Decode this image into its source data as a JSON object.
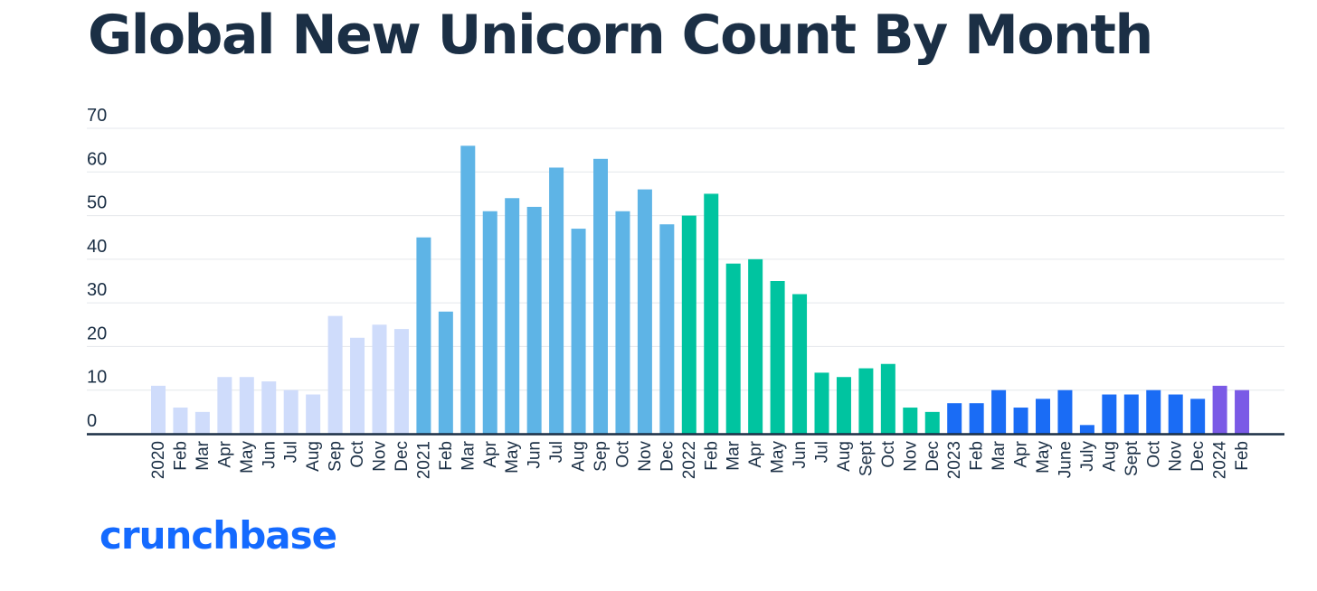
{
  "title": "Global New Unicorn Count By Month",
  "logo_text": "crunchbase",
  "chart_data": {
    "type": "bar",
    "title": "Global New Unicorn Count By Month",
    "xlabel": "",
    "ylabel": "",
    "ylim": [
      0,
      70
    ],
    "yticks": [
      0,
      10,
      20,
      30,
      40,
      50,
      60,
      70
    ],
    "grid": true,
    "categories": [
      "2020",
      "Feb",
      "Mar",
      "Apr",
      "May",
      "Jun",
      "Jul",
      "Aug",
      "Sep",
      "Oct",
      "Nov",
      "Dec",
      "2021",
      "Feb",
      "Mar",
      "Apr",
      "May",
      "Jun",
      "Jul",
      "Aug",
      "Sep",
      "Oct",
      "Nov",
      "Dec",
      "2022",
      "Feb",
      "Mar",
      "Apr",
      "May",
      "Jun",
      "Jul",
      "Aug",
      "Sept",
      "Oct",
      "Nov",
      "Dec",
      "2023",
      "Feb",
      "Mar",
      "Apr",
      "May",
      "June",
      "July",
      "Aug",
      "Sept",
      "Oct",
      "Nov",
      "Dec",
      "2024",
      "Feb"
    ],
    "values": [
      11,
      6,
      5,
      13,
      13,
      12,
      10,
      9,
      27,
      22,
      25,
      24,
      45,
      28,
      66,
      51,
      54,
      52,
      61,
      47,
      63,
      51,
      56,
      48,
      50,
      55,
      39,
      40,
      35,
      32,
      14,
      13,
      15,
      16,
      6,
      5,
      7,
      7,
      10,
      6,
      8,
      10,
      2,
      9,
      9,
      10,
      9,
      8,
      11,
      10
    ],
    "year_groups": [
      {
        "year": "2020",
        "start": 0,
        "end": 11,
        "color": "#cfdcfb"
      },
      {
        "year": "2021",
        "start": 12,
        "end": 23,
        "color": "#5eb4e6"
      },
      {
        "year": "2022",
        "start": 24,
        "end": 35,
        "color": "#00c4a0"
      },
      {
        "year": "2023",
        "start": 36,
        "end": 47,
        "color": "#1a6cf5"
      },
      {
        "year": "2024",
        "start": 48,
        "end": 49,
        "color": "#7a5ae6"
      }
    ]
  }
}
